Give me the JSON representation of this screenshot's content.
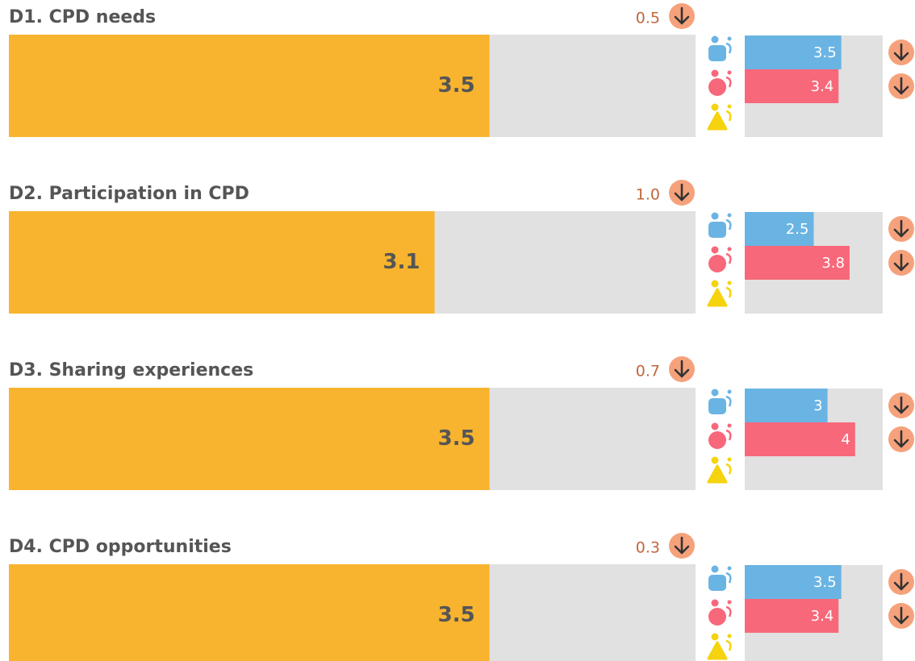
{
  "chart_data": [
    {
      "type": "bar",
      "title": "D1. CPD needs",
      "value": 3.5,
      "change": 0.5,
      "xlim": [
        0,
        5
      ],
      "color": "#f8b42e",
      "groups": {
        "values": [
          3.5,
          3.4
        ],
        "colors": [
          "#6ab4e4",
          "#f7687a"
        ]
      }
    },
    {
      "type": "bar",
      "title": "D2. Participation in CPD",
      "value": 3.1,
      "change": {
        "value": 1.0,
        "label": "1.0"
      },
      "xlim": [
        0,
        5
      ],
      "color": "#f8b42e",
      "groups": {
        "values": [
          2.5,
          3.8
        ],
        "colors": [
          "#6ab4e4",
          "#f7687a"
        ]
      }
    },
    {
      "type": "bar",
      "title": "D3. Sharing experiences",
      "value": 3.5,
      "change": 0.7,
      "xlim": [
        0,
        5
      ],
      "color": "#f8b42e",
      "groups": {
        "values": [
          3,
          4
        ],
        "colors": [
          "#6ab4e4",
          "#f7687a"
        ]
      }
    },
    {
      "type": "bar",
      "title": "D4. CPD opportunities",
      "value": 3.5,
      "change": 0.3,
      "xlim": [
        0,
        5
      ],
      "color": "#f8b42e",
      "groups": {
        "values": [
          3.5,
          3.4
        ],
        "colors": [
          "#6ab4e4",
          "#f7687a"
        ]
      }
    }
  ]
}
